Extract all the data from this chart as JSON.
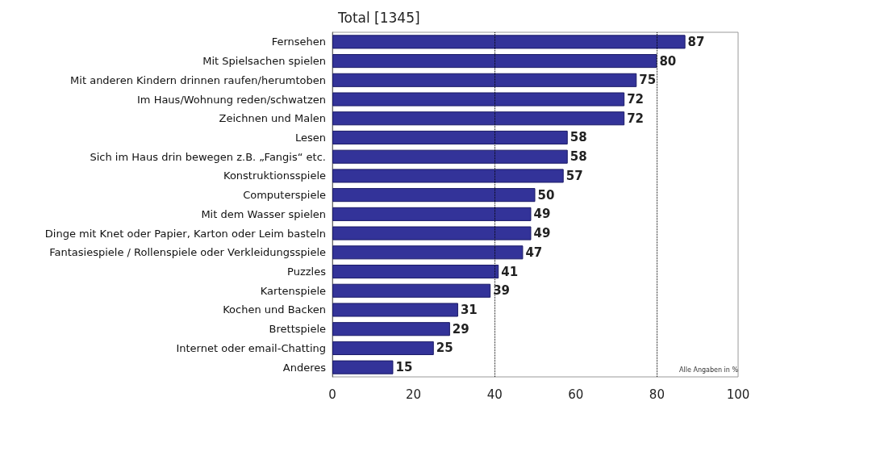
{
  "chart_data": {
    "type": "bar",
    "orientation": "horizontal",
    "title": "Total [1345]",
    "categories": [
      "Fernsehen",
      "Mit Spielsachen spielen",
      "Mit anderen Kindern drinnen raufen/herumtoben",
      "Im Haus/Wohnung reden/schwatzen",
      "Zeichnen und Malen",
      "Lesen",
      "Sich im Haus drin bewegen z.B. „Fangis“ etc.",
      "Konstruktionsspiele",
      "Computerspiele",
      "Mit dem Wasser spielen",
      "Dinge mit Knet oder Papier, Karton oder Leim basteln",
      "Fantasiespiele / Rollenspiele oder Verkleidungsspiele",
      "Puzzles",
      "Kartenspiele",
      "Kochen und Backen",
      "Brettspiele",
      "Internet oder email-Chatting",
      "Anderes"
    ],
    "values": [
      87,
      80,
      75,
      72,
      72,
      58,
      58,
      57,
      50,
      49,
      49,
      47,
      41,
      39,
      31,
      29,
      25,
      15
    ],
    "color": "#333399",
    "data_labels": true,
    "xlim": [
      0,
      100
    ],
    "xticks": [
      0,
      20,
      40,
      60,
      80,
      100
    ],
    "grid": false,
    "ref_lines": [
      {
        "axis": "x",
        "value": 40,
        "color": "#000000",
        "line_style": "dotted"
      },
      {
        "axis": "x",
        "value": 80,
        "color": "#000000",
        "line_style": "dotted"
      }
    ],
    "annotations": [
      "Alle Angaben in %"
    ]
  }
}
